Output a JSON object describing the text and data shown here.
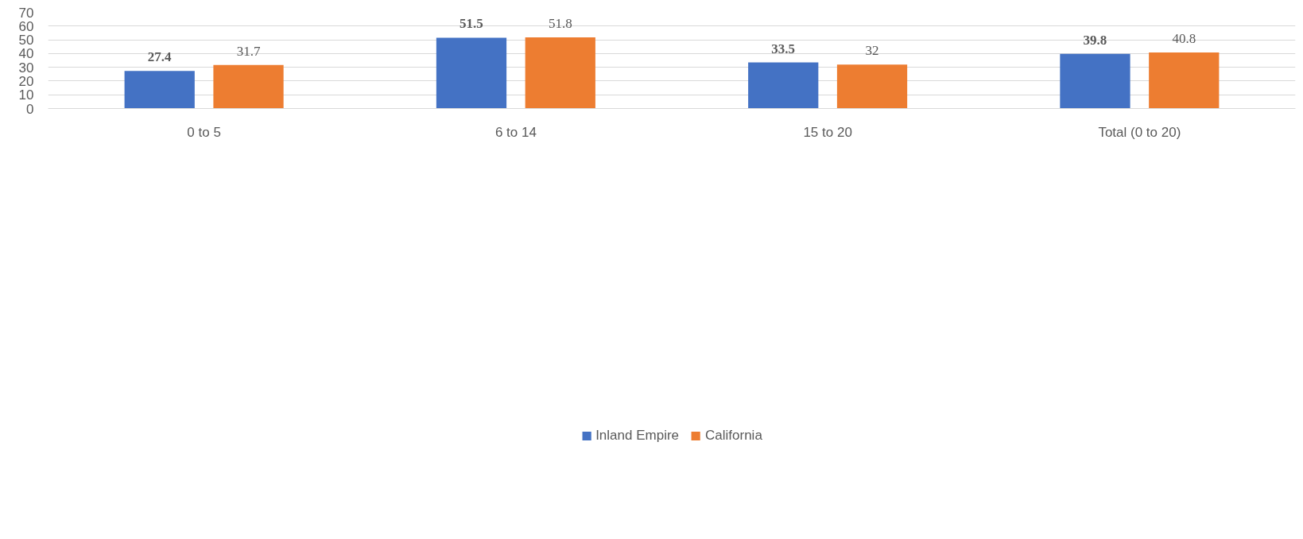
{
  "chart_data": {
    "type": "bar",
    "categories": [
      "0 to 5",
      "6 to 14",
      "15 to 20",
      "Total (0 to 20)"
    ],
    "series": [
      {
        "name": "Inland Empire",
        "color": "#4472c4",
        "values": [
          27.4,
          51.5,
          33.5,
          39.8
        ]
      },
      {
        "name": "California",
        "color": "#ed7d31",
        "values": [
          31.7,
          51.8,
          32,
          40.8
        ]
      }
    ],
    "ylim": [
      0,
      70
    ],
    "yticks": [
      0,
      10,
      20,
      30,
      40,
      50,
      60,
      70
    ],
    "grid": "y",
    "legend": "bottom",
    "data_labels": true
  }
}
